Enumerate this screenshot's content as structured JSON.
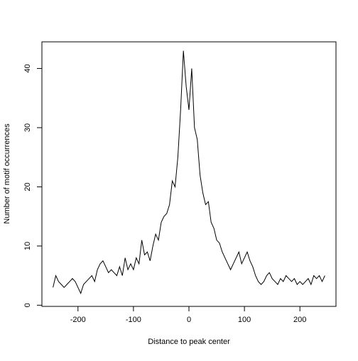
{
  "chart_data": {
    "type": "line",
    "xlabel": "Distance to peak center",
    "ylabel": "Number of motif occurrences",
    "x": [
      -245,
      -240,
      -235,
      -230,
      -225,
      -220,
      -215,
      -210,
      -205,
      -200,
      -195,
      -190,
      -185,
      -180,
      -175,
      -170,
      -165,
      -160,
      -155,
      -150,
      -145,
      -140,
      -135,
      -130,
      -125,
      -120,
      -115,
      -110,
      -105,
      -100,
      -95,
      -90,
      -85,
      -80,
      -75,
      -70,
      -65,
      -60,
      -55,
      -50,
      -45,
      -40,
      -35,
      -30,
      -25,
      -20,
      -15,
      -10,
      -5,
      0,
      5,
      10,
      15,
      20,
      25,
      30,
      35,
      40,
      45,
      50,
      55,
      60,
      65,
      70,
      75,
      80,
      85,
      90,
      95,
      100,
      105,
      110,
      115,
      120,
      125,
      130,
      135,
      140,
      145,
      150,
      155,
      160,
      165,
      170,
      175,
      180,
      185,
      190,
      195,
      200,
      205,
      210,
      215,
      220,
      225,
      230,
      235,
      240,
      245
    ],
    "series": [
      {
        "color": "#000000",
        "values": [
          3,
          5,
          4,
          3.5,
          3,
          3.5,
          4,
          4.5,
          4,
          3,
          2,
          3.5,
          4,
          4.5,
          5,
          4,
          6,
          7,
          7.5,
          6.5,
          5.5,
          6,
          5.5,
          5,
          6.5,
          5,
          8,
          6,
          7,
          6,
          8,
          7,
          11,
          8.5,
          9,
          7.5,
          10,
          12,
          11,
          14,
          15,
          15.5,
          17,
          21,
          20,
          25,
          33,
          43,
          37,
          33,
          40,
          30,
          28,
          22,
          19,
          17,
          17.5,
          14,
          13,
          11,
          10.5,
          9,
          8,
          7,
          6,
          7,
          8,
          9,
          7,
          8,
          9,
          7.5,
          6.5,
          5,
          4,
          3.5,
          4,
          5,
          5.5,
          4.5,
          4,
          3.5,
          4.5,
          4,
          5,
          4.5,
          4,
          4.5,
          3.5,
          4,
          3.5,
          4,
          4.5,
          3.5,
          5,
          4.5,
          5,
          4,
          5
        ]
      }
    ],
    "xlim": [
      -265,
      265
    ],
    "ylim": [
      -0.2,
      44.5
    ],
    "xticks": [
      -200,
      -100,
      0,
      100,
      200
    ],
    "yticks": [
      0,
      10,
      20,
      30,
      40
    ]
  }
}
